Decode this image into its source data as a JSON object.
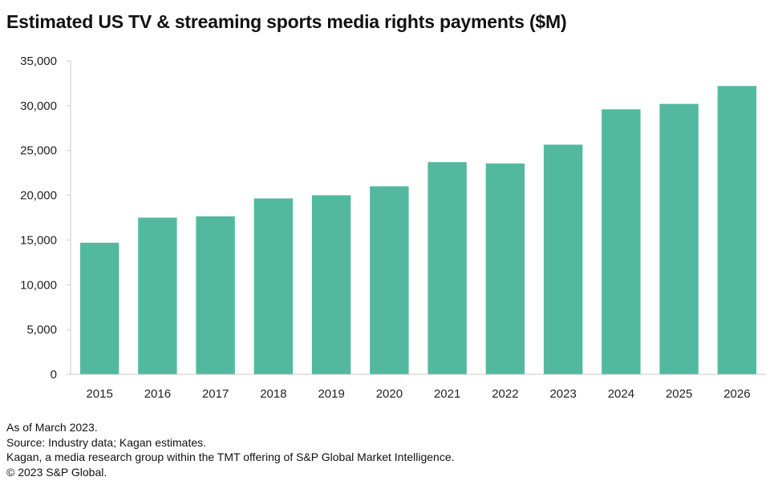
{
  "chart_data": {
    "type": "bar",
    "title": "Estimated US TV & streaming sports media rights payments ($M)",
    "xlabel": "",
    "ylabel": "",
    "categories": [
      "2015",
      "2016",
      "2017",
      "2018",
      "2019",
      "2020",
      "2021",
      "2022",
      "2023",
      "2024",
      "2025",
      "2026"
    ],
    "values": [
      14700,
      17500,
      17650,
      19650,
      20000,
      21000,
      23700,
      23550,
      25650,
      29600,
      30200,
      32200
    ],
    "ylim": [
      0,
      35000
    ],
    "yticks": [
      0,
      5000,
      10000,
      15000,
      20000,
      25000,
      30000,
      35000
    ],
    "ytick_labels": [
      "0",
      "5,000",
      "10,000",
      "15,000",
      "20,000",
      "25,000",
      "30,000",
      "35,000"
    ],
    "grid": false,
    "legend": "none",
    "bar_color": "#52b99e",
    "axis_color": "#c8c8c8"
  },
  "footnotes": [
    "As of March 2023.",
    "Source: Industry data; Kagan estimates.",
    "Kagan, a media research group within the TMT offering of S&P Global Market Intelligence.",
    "© 2023 S&P Global."
  ]
}
